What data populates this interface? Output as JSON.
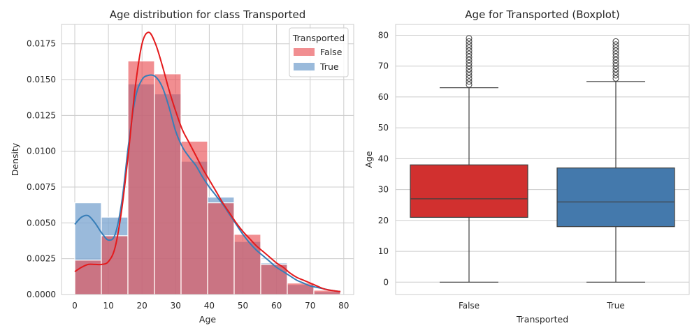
{
  "colors": {
    "false_hist": "#e8484e",
    "true_hist": "#7ea7d1",
    "false_kde": "#e41a1c",
    "true_kde": "#377eb8",
    "false_box": "#d1302f",
    "true_box": "#4479ac",
    "grid": "#cccccc",
    "axis_edge": "#cccccc",
    "line_dark": "#3f3f3f"
  },
  "chart_data": [
    {
      "type": "bar",
      "title": "Age distribution for class Transported",
      "xlabel": "Age",
      "ylabel": "Density",
      "xlim": [
        -3.95,
        82.95
      ],
      "ylim": [
        0,
        0.01885
      ],
      "x_ticks": [
        0,
        10,
        20,
        30,
        40,
        50,
        60,
        70,
        80
      ],
      "x_tick_labels": [
        "0",
        "10",
        "20",
        "30",
        "40",
        "50",
        "60",
        "70",
        "80"
      ],
      "y_ticks": [
        0,
        0.0025,
        0.005,
        0.0075,
        0.01,
        0.0125,
        0.015,
        0.0175
      ],
      "y_tick_labels": [
        "0.0000",
        "0.0025",
        "0.0050",
        "0.0075",
        "0.0100",
        "0.0125",
        "0.0150",
        "0.0175"
      ],
      "grid": true,
      "legend_title": "Transported",
      "legend_position": "top-right",
      "bin_edges": [
        0,
        7.9,
        15.8,
        23.7,
        31.6,
        39.5,
        47.4,
        55.3,
        63.2,
        71.1,
        79
      ],
      "series": [
        {
          "name": "False",
          "density": [
            0.0024,
            0.0041,
            0.0163,
            0.0154,
            0.0107,
            0.0064,
            0.0042,
            0.0021,
            0.0008,
            0.0003
          ],
          "kde_x": [
            0,
            2,
            4,
            6,
            8,
            10,
            12,
            14,
            16,
            18,
            20,
            22,
            24,
            26,
            28,
            30,
            32,
            34,
            36,
            38,
            40,
            42,
            44,
            46,
            48,
            50,
            52,
            54,
            56,
            58,
            60,
            62,
            64,
            66,
            68,
            70,
            72,
            74,
            76,
            79
          ],
          "kde_y": [
            0.0016,
            0.0019,
            0.0021,
            0.0021,
            0.0021,
            0.0023,
            0.0033,
            0.006,
            0.01,
            0.0145,
            0.0175,
            0.0183,
            0.0175,
            0.016,
            0.0143,
            0.0128,
            0.0115,
            0.0106,
            0.0097,
            0.0088,
            0.008,
            0.0072,
            0.0064,
            0.0057,
            0.005,
            0.0044,
            0.0039,
            0.0034,
            0.003,
            0.0026,
            0.0022,
            0.0019,
            0.0015,
            0.0012,
            0.001,
            0.0008,
            0.0006,
            0.0004,
            0.0003,
            0.0002
          ]
        },
        {
          "name": "True",
          "density": [
            0.0064,
            0.0054,
            0.0147,
            0.014,
            0.0093,
            0.0068,
            0.0037,
            0.0022,
            0.0007,
            0.0002
          ],
          "kde_x": [
            0,
            2,
            4,
            6,
            8,
            10,
            12,
            14,
            16,
            18,
            20,
            22,
            24,
            26,
            28,
            30,
            32,
            34,
            36,
            38,
            40,
            42,
            44,
            46,
            48,
            50,
            52,
            54,
            56,
            58,
            60,
            62,
            64,
            66,
            68,
            70,
            72,
            74,
            76,
            79
          ],
          "kde_y": [
            0.0049,
            0.0054,
            0.0055,
            0.005,
            0.0043,
            0.0038,
            0.0042,
            0.0065,
            0.0105,
            0.0137,
            0.015,
            0.0153,
            0.0152,
            0.0145,
            0.0131,
            0.0114,
            0.0103,
            0.0096,
            0.009,
            0.0082,
            0.0075,
            0.0069,
            0.0063,
            0.0056,
            0.0049,
            0.0042,
            0.0036,
            0.0031,
            0.0027,
            0.0023,
            0.0019,
            0.0016,
            0.0013,
            0.001,
            0.0008,
            0.0006,
            0.0005,
            0.0004,
            0.0003,
            0.0002
          ]
        }
      ]
    },
    {
      "type": "box",
      "title": "Age for Transported (Boxplot)",
      "xlabel": "Transported",
      "ylabel": "Age",
      "categories": [
        "False",
        "True"
      ],
      "ylim": [
        -4,
        83.5
      ],
      "y_ticks": [
        0,
        10,
        20,
        30,
        40,
        50,
        60,
        70,
        80
      ],
      "y_tick_labels": [
        "0",
        "10",
        "20",
        "30",
        "40",
        "50",
        "60",
        "70",
        "80"
      ],
      "grid": true,
      "boxes": [
        {
          "name": "False",
          "whisker_low": 0,
          "q1": 21,
          "median": 27,
          "q3": 38,
          "whisker_high": 63,
          "outliers": [
            64,
            65,
            66,
            67,
            68,
            69,
            70,
            71,
            72,
            73,
            74,
            75,
            76,
            77,
            78,
            79
          ]
        },
        {
          "name": "True",
          "whisker_low": 0,
          "q1": 18,
          "median": 26,
          "q3": 37,
          "whisker_high": 65,
          "outliers": [
            66,
            67,
            68,
            69,
            70,
            71,
            72,
            73,
            74,
            75,
            76,
            77,
            78
          ]
        }
      ]
    }
  ]
}
